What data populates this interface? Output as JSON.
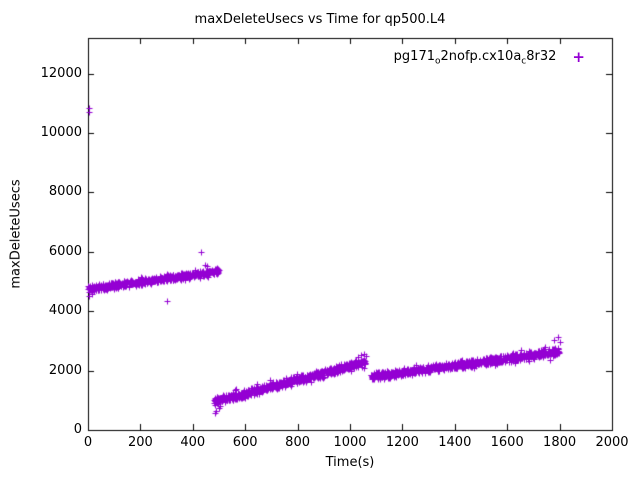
{
  "chart_data": {
    "type": "scatter",
    "title": "maxDeleteUsecs vs Time for qp500.L4",
    "xlabel": "Time(s)",
    "ylabel": "maxDeleteUsecs",
    "xlim": [
      0,
      2000
    ],
    "ylim": [
      0,
      13200
    ],
    "xticks": [
      0,
      200,
      400,
      600,
      800,
      1000,
      1200,
      1400,
      1600,
      1800,
      2000
    ],
    "yticks": [
      0,
      2000,
      4000,
      6000,
      8000,
      10000,
      12000
    ],
    "grid": false,
    "legend_position": "top-right",
    "background": "#ffffff",
    "axis_color": "#000000",
    "seed": 42,
    "series": [
      {
        "name": "pg171_o2nofp.cx10a_c8r32",
        "label_parts": [
          {
            "t": "pg171"
          },
          {
            "t": "o",
            "sub": true
          },
          {
            "t": "2nofp.cx10a"
          },
          {
            "t": "c",
            "sub": true
          },
          {
            "t": "8r32"
          }
        ],
        "marker": "plus",
        "marker_glyph": "+",
        "color": "#9400d3",
        "segments": [
          {
            "x_start": 0,
            "x_end": 500,
            "y_start": 4750,
            "y_end": 5350,
            "points": 650,
            "noise": 120
          },
          {
            "x_start": 480,
            "x_end": 1060,
            "y_start": 950,
            "y_end": 2300,
            "points": 750,
            "noise": 150
          },
          {
            "x_start": 1080,
            "x_end": 1800,
            "y_start": 1800,
            "y_end": 2650,
            "points": 950,
            "noise": 140
          }
        ],
        "outliers": [
          [
            2,
            10850
          ],
          [
            2,
            10700
          ],
          [
            5,
            4520
          ],
          [
            14,
            4570
          ],
          [
            300,
            4330
          ],
          [
            430,
            5980
          ],
          [
            445,
            5560
          ],
          [
            455,
            5510
          ],
          [
            483,
            560
          ],
          [
            490,
            650
          ],
          [
            500,
            730
          ],
          [
            505,
            810
          ],
          [
            1030,
            2470
          ],
          [
            1042,
            2530
          ],
          [
            1055,
            2560
          ],
          [
            1060,
            2480
          ],
          [
            1780,
            3040
          ],
          [
            1792,
            3140
          ],
          [
            1800,
            2980
          ]
        ]
      }
    ]
  }
}
